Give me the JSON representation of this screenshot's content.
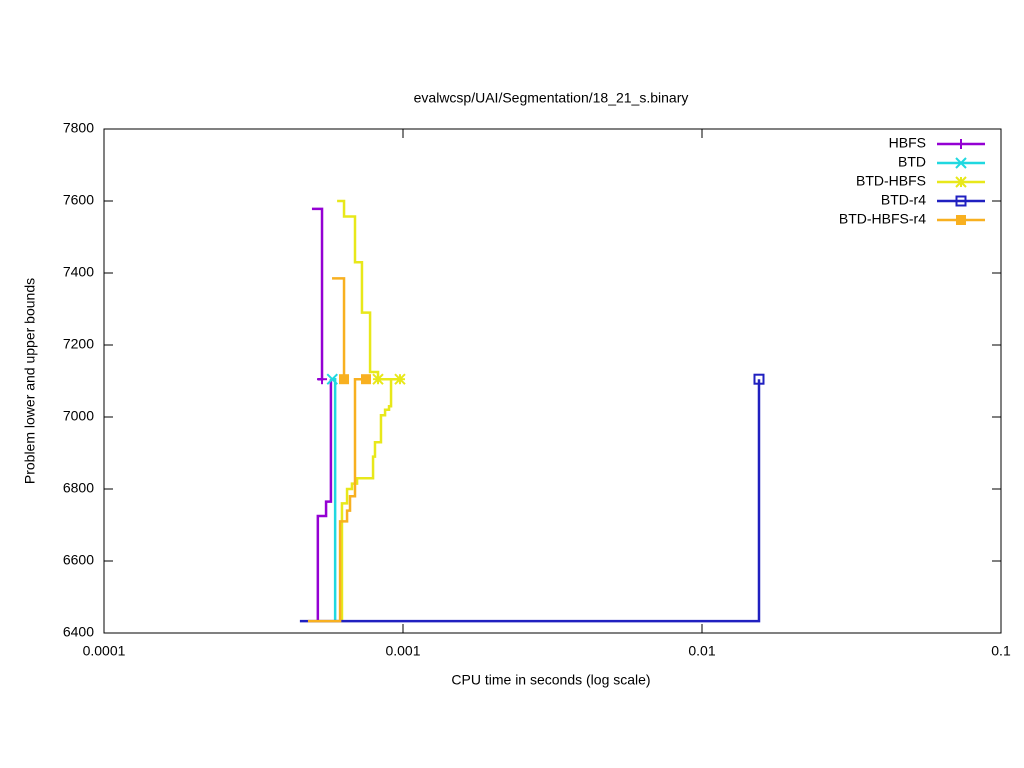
{
  "chart_data": {
    "type": "line",
    "title": "evalwcsp/UAI/Segmentation/18_21_s.binary",
    "x_label": "CPU time in seconds (log scale)",
    "y_label": "Problem lower and upper bounds",
    "x_log": true,
    "xlim": [
      0.0001,
      0.1
    ],
    "xticks": [
      0.0001,
      0.001,
      0.01,
      0.1
    ],
    "ylim": [
      6400,
      7800
    ],
    "yticks": [
      6400,
      6600,
      6800,
      7000,
      7200,
      7400,
      7600,
      7800
    ],
    "legend": "top-right",
    "series": [
      {
        "name": "HBFS",
        "color": "#9400d3",
        "marker": "plus",
        "x": [
          0.000496,
          0.000536,
          0.000536,
          0.000519,
          null,
          0.000519,
          0.000519,
          0.000553,
          0.000553,
          0.000574,
          0.000574
        ],
        "y": [
          7578,
          7578,
          7105,
          7105,
          null,
          6433,
          6725,
          6725,
          6765,
          6765,
          7105
        ],
        "points_x": [
          0.000536
        ],
        "points_y": [
          7105
        ]
      },
      {
        "name": "BTD",
        "color": "#20d8e0",
        "marker": "cross",
        "x": [
          0.000593,
          0.000593,
          0.000575
        ],
        "y": [
          6433,
          7105,
          7105
        ],
        "points_x": [
          0.00058
        ],
        "points_y": [
          7105
        ]
      },
      {
        "name": "BTD-HBFS",
        "color": "#e8e81a",
        "marker": "star",
        "x": [
          0.000602,
          0.000635,
          0.000635,
          0.000691,
          0.000691,
          0.000729,
          0.000729,
          0.000776,
          0.000776,
          0.000825,
          0.000825,
          0.000977,
          null,
          0.000625,
          0.000625,
          0.00065,
          0.00065,
          0.000675,
          0.000675,
          0.000702,
          0.000702,
          0.000794,
          0.000794,
          0.000806,
          0.000806,
          0.000844,
          0.000844,
          0.000871,
          0.000871,
          0.000898,
          0.000898,
          0.000912,
          0.000912
        ],
        "y": [
          7600,
          7600,
          7557,
          7557,
          7430,
          7430,
          7290,
          7290,
          7125,
          7125,
          7105,
          7105,
          null,
          6433,
          6760,
          6760,
          6800,
          6800,
          6815,
          6815,
          6830,
          6830,
          6890,
          6890,
          6930,
          6930,
          7005,
          7005,
          7020,
          7020,
          7030,
          7030,
          7105
        ],
        "points_x": [
          0.000825,
          0.000977
        ],
        "points_y": [
          7105,
          7105
        ]
      },
      {
        "name": "BTD-r4",
        "color": "#2020c0",
        "marker": "open-square",
        "x": [
          0.000452,
          0.01551,
          0.01551
        ],
        "y": [
          6433,
          6433,
          7105
        ],
        "points_x": [
          0.01551
        ],
        "points_y": [
          7105
        ]
      },
      {
        "name": "BTD-HBFS-r4",
        "color": "#f8b020",
        "marker": "filled-square",
        "x": [
          0.000579,
          0.000635,
          0.000635,
          null,
          0.000481,
          0.000616,
          0.000616,
          0.00065,
          0.00065,
          0.000665,
          0.000665,
          0.000691,
          0.000691,
          0.000752
        ],
        "y": [
          7385,
          7385,
          7105,
          null,
          6433,
          6433,
          6710,
          6710,
          6740,
          6740,
          6780,
          6780,
          7105,
          7105
        ],
        "points_x": [
          0.000635,
          0.000752
        ],
        "points_y": [
          7105,
          7105
        ]
      }
    ]
  }
}
